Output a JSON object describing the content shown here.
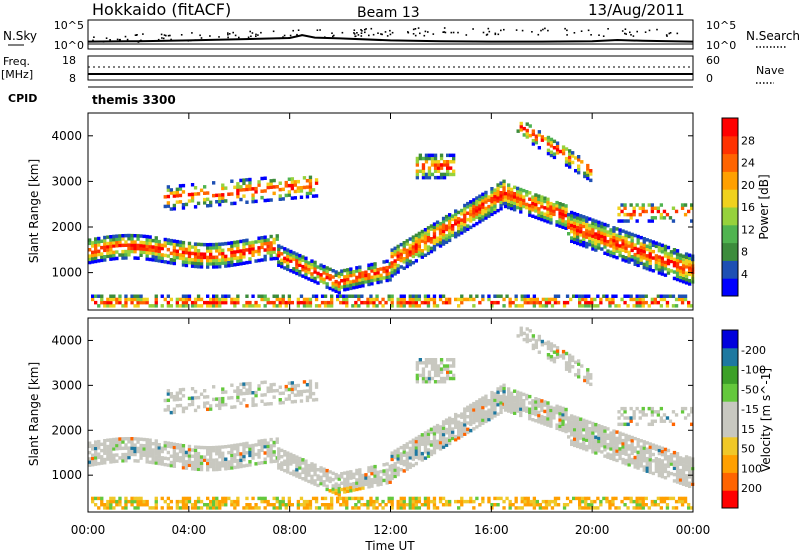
{
  "header": {
    "station": "Hokkaido (fitACF)",
    "beam": "Beam 13",
    "date": "13/Aug/2011"
  },
  "summary": {
    "nsky_label": "N.Sky",
    "nsearch_label": "N.Search",
    "freq_label": "Freq.",
    "freq_unit": "[MHz]",
    "nave_label": "Nave",
    "cpid_label": "CPID",
    "cpid_value": "themis 3300",
    "noise_ticks_left": [
      "10^5",
      "10^0"
    ],
    "noise_ticks_right": [
      "10^5",
      "10^0"
    ],
    "freq_ticks": [
      "18",
      "8"
    ],
    "nave_ticks": [
      "60",
      "0"
    ]
  },
  "axes": {
    "xlabel": "Time UT",
    "ylabel": "Slant Range [km]",
    "xticks": [
      "00:00",
      "04:00",
      "08:00",
      "12:00",
      "16:00",
      "20:00",
      "00:00"
    ],
    "yticks": [
      "1000",
      "2000",
      "3000",
      "4000"
    ]
  },
  "colors": {
    "power": [
      "#0000ff",
      "#1e50b4",
      "#3c8c3c",
      "#50b450",
      "#96d23c",
      "#f0d21e",
      "#ffa000",
      "#ff6400",
      "#ff3200",
      "#ff0000"
    ],
    "velocity": [
      "#ff0000",
      "#ff6400",
      "#ffa000",
      "#f0c828",
      "#c8c8c0",
      "#c8c8c0",
      "#64c83c",
      "#3ca028",
      "#1e78a0",
      "#0000dc"
    ]
  },
  "chart_data": [
    {
      "type": "line",
      "title": "N.Sky / N.Search",
      "x_range_hours": [
        0,
        24
      ],
      "y_scale": "log",
      "ylim": [
        "10^0",
        "10^5"
      ],
      "x": [
        0,
        2,
        4,
        6,
        8,
        8.5,
        9,
        10,
        12,
        14,
        16,
        18,
        20,
        21,
        22,
        24
      ],
      "values": [
        0.6,
        0.7,
        0.9,
        1.2,
        1.5,
        2.2,
        1.6,
        1.4,
        0.9,
        0.7,
        0.6,
        0.6,
        0.7,
        1.0,
        0.8,
        0.6
      ]
    },
    {
      "type": "line",
      "title": "Freq. / Nave",
      "x_range_hours": [
        0,
        24
      ],
      "series": [
        {
          "name": "Freq.",
          "unit": "[MHz]",
          "ylim": [
            8,
            18
          ],
          "x": [
            0,
            24
          ],
          "values": [
            10.5,
            10.5
          ]
        },
        {
          "name": "Nave",
          "ylim": [
            0,
            60
          ],
          "x": [
            0,
            24
          ],
          "values": [
            24,
            24
          ]
        }
      ]
    },
    {
      "type": "heatmap",
      "quantity": "Power",
      "colorbar_label": "Power [dB]",
      "colorbar_ticks": [
        "4",
        "8",
        "12",
        "16",
        "20",
        "24",
        "28"
      ],
      "xlabel": "Time UT",
      "ylabel": "Slant Range [km]",
      "x_range_hours": [
        0,
        24
      ],
      "ylim": [
        180,
        4500
      ]
    },
    {
      "type": "heatmap",
      "quantity": "Velocity",
      "colorbar_label": "Velocity [m s^-1]",
      "colorbar_ticks": [
        "200",
        "100",
        "50",
        "15",
        "-15",
        "-50",
        "-100",
        "-200"
      ],
      "xlabel": "Time UT",
      "ylabel": "Slant Range [km]",
      "x_range_hours": [
        0,
        24
      ],
      "ylim": [
        180,
        4500
      ]
    }
  ]
}
